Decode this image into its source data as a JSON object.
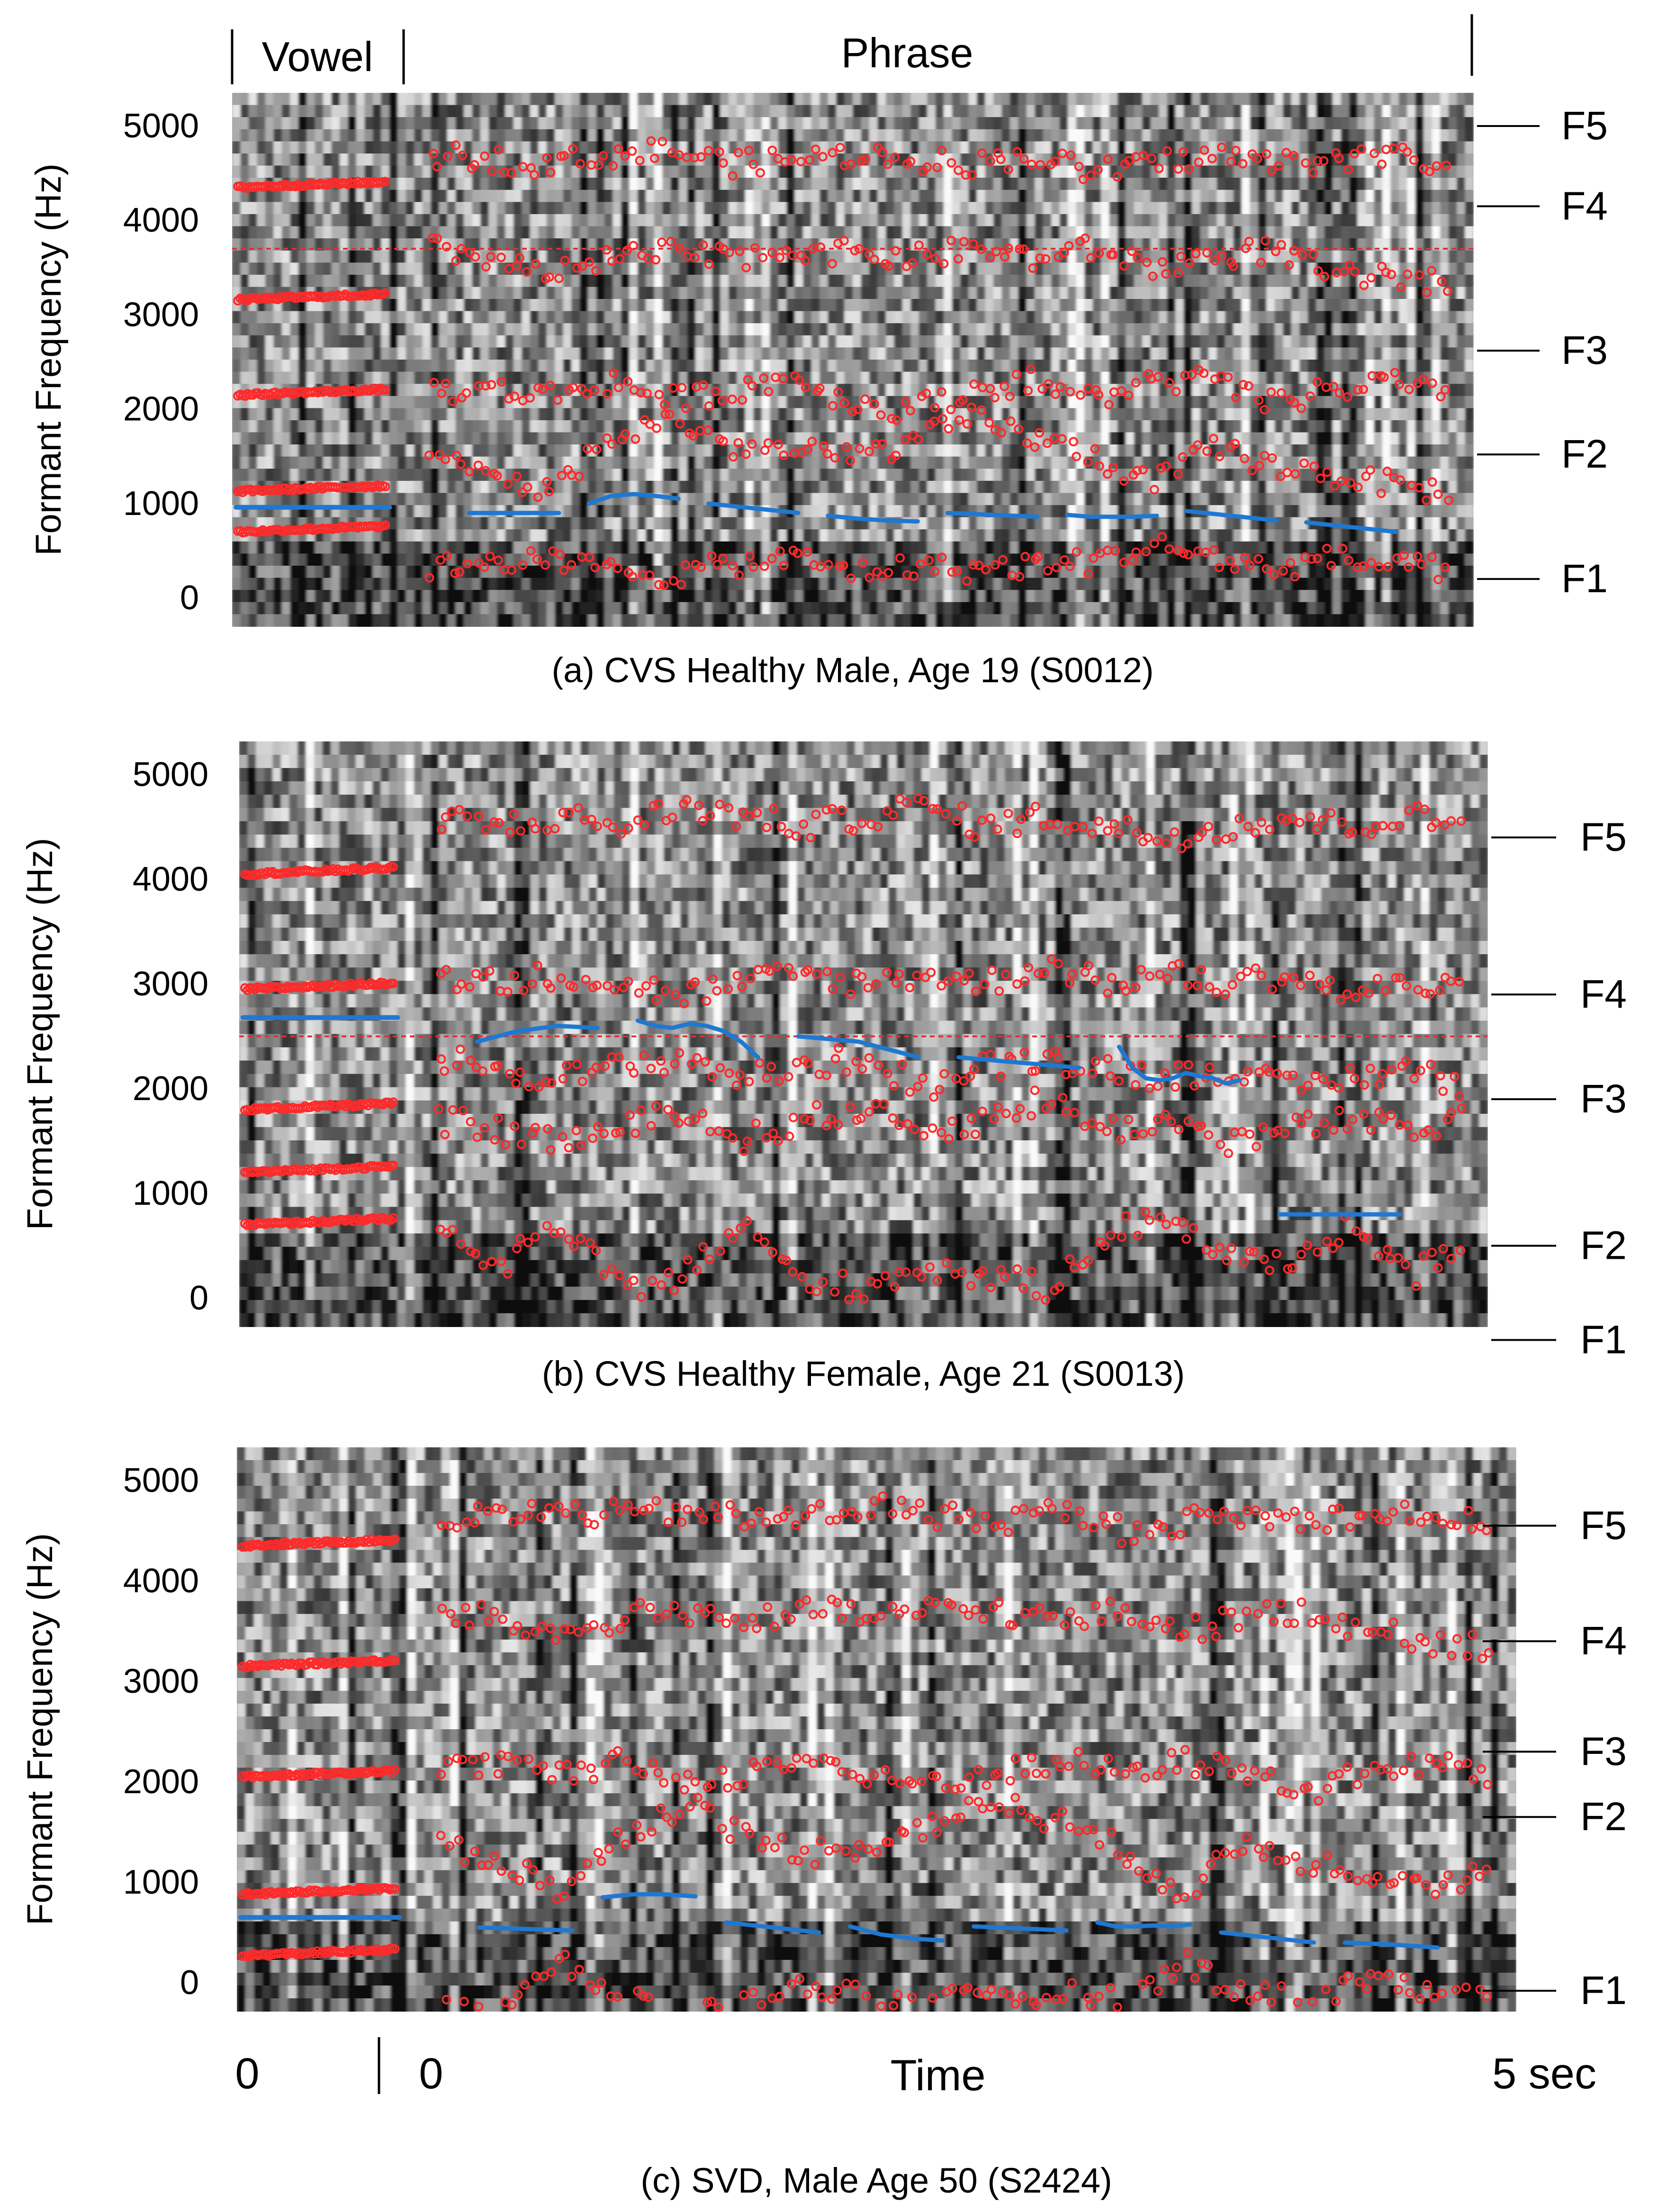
{
  "header": {
    "vowel_label": "Vowel",
    "phrase_label": "Phrase"
  },
  "x_axis": {
    "label": "Time",
    "vowel_start": "0",
    "phrase_start": "0",
    "end_label": "5 sec"
  },
  "colors": {
    "formant_points": "#ff2a2a",
    "pitch_track": "#1f78d1",
    "reference_line": "#e03030"
  },
  "chart_data": [
    {
      "type": "scatter",
      "caption": "(a) CVS Healthy Male, Age 19 (S0012)",
      "ylabel": "Formant Frequency (Hz)",
      "yticks": [
        0,
        1000,
        2000,
        3000,
        4000,
        5000
      ],
      "ylim": [
        0,
        5000
      ],
      "formant_labels": [
        "F5",
        "F4",
        "F3",
        "F2",
        "F1"
      ],
      "formant_label_hz": [
        5000,
        4150,
        2620,
        1520,
        200
      ],
      "reference_line_hz": 3700,
      "vowel_formants_hz": [
        700,
        1130,
        2150,
        3160,
        4350
      ],
      "pitch_vowel_hz": 960,
      "series": [
        {
          "name": "F1",
          "values": [
            300,
            420,
            380,
            300,
            240,
            360,
            420,
            280,
            330,
            300,
            350,
            380,
            560,
            430,
            300,
            420,
            330,
            300
          ]
        },
        {
          "name": "F2",
          "values": [
            1450,
            1300,
            1120,
            1700,
            1900,
            1600,
            1550,
            1500,
            1650,
            1900,
            1700,
            1500,
            1200,
            1600,
            1400,
            1300,
            1200,
            1100
          ]
        },
        {
          "name": "F3",
          "values": [
            2200,
            2200,
            2150,
            2300,
            2100,
            2200,
            2350,
            2050,
            2000,
            2200,
            2300,
            2100,
            2300,
            2300,
            2050,
            2200,
            2300,
            2100
          ]
        },
        {
          "name": "F4",
          "values": [
            3700,
            3600,
            3400,
            3600,
            3650,
            3600,
            3700,
            3650,
            3600,
            3700,
            3600,
            3700,
            3500,
            3600,
            3700,
            3400,
            3400,
            3300
          ]
        },
        {
          "name": "F5",
          "values": [
            4700,
            4650,
            4600,
            4700,
            4750,
            4600,
            4650,
            4700,
            4650,
            4600,
            4700,
            4500,
            4600,
            4700,
            4600,
            4650,
            4700,
            4500
          ]
        }
      ],
      "pitch_segments_hz": [
        [
          900,
          900
        ],
        [
          1000,
          1080,
          1100,
          1080,
          1050
        ],
        [
          1000,
          900
        ],
        [
          870,
          840,
          820,
          810
        ],
        [
          900,
          860
        ],
        [
          880,
          860,
          860,
          860,
          870
        ],
        [
          920,
          820
        ],
        [
          800,
          750,
          700
        ]
      ]
    },
    {
      "type": "scatter",
      "caption": "(b) CVS Healthy Female, Age 21 (S0013)",
      "ylabel": "Formant Frequency (Hz)",
      "yticks": [
        0,
        1000,
        2000,
        3000,
        4000,
        5000
      ],
      "ylim": [
        0,
        5000
      ],
      "formant_labels": [
        "F5",
        "F4",
        "F3",
        "F2",
        "F1"
      ],
      "formant_label_hz": [
        4400,
        2900,
        1900,
        500,
        -400
      ],
      "reference_line_hz": 2500,
      "vowel_formants_hz": [
        700,
        1200,
        1800,
        2950,
        4050
      ],
      "pitch_vowel_hz": 2680,
      "series": [
        {
          "name": "F1",
          "values": [
            600,
            300,
            700,
            100,
            200,
            700,
            150,
            100,
            300,
            200,
            100,
            600,
            800,
            400,
            300,
            700,
            200,
            500
          ]
        },
        {
          "name": "F2",
          "values": [
            1700,
            1600,
            1500,
            1600,
            1800,
            1500,
            1700,
            1800,
            1600,
            1700,
            1900,
            1600,
            1700,
            1500,
            1600,
            1700,
            1600,
            1700
          ]
        },
        {
          "name": "F3",
          "values": [
            2300,
            2200,
            2100,
            2200,
            2300,
            2100,
            2200,
            2300,
            2000,
            2200,
            2300,
            2200,
            2100,
            2200,
            2000,
            2100,
            2200,
            2000
          ]
        },
        {
          "name": "F4",
          "values": [
            3100,
            3000,
            3100,
            3000,
            2900,
            3000,
            3100,
            3000,
            3100,
            3000,
            3200,
            3000,
            3100,
            3000,
            3100,
            2900,
            3000,
            2900
          ]
        },
        {
          "name": "F5",
          "values": [
            4600,
            4500,
            4600,
            4500,
            4700,
            4600,
            4500,
            4600,
            4700,
            4500,
            4600,
            4500,
            4400,
            4500,
            4600,
            4500,
            4600,
            4500
          ]
        }
      ],
      "pitch_segments_hz": [
        [
          2450,
          2550,
          2600,
          2580
        ],
        [
          2650,
          2600,
          2580,
          2620,
          2600,
          2550,
          2450,
          2300
        ],
        [
          2500,
          2450,
          2300
        ],
        [
          2300,
          2250,
          2200
        ],
        [
          2400,
          2200,
          2100,
          2080,
          2100,
          2150,
          2120,
          2100,
          2050,
          2080
        ],
        [
          800,
          800
        ]
      ]
    },
    {
      "type": "scatter",
      "caption": "(c) SVD, Male Age 50 (S2424)",
      "ylabel": "Formant Frequency (Hz)",
      "yticks": [
        0,
        1000,
        2000,
        3000,
        4000,
        5000
      ],
      "ylim": [
        0,
        5000
      ],
      "formant_labels": [
        "F5",
        "F4",
        "F3",
        "F2",
        "F1"
      ],
      "formant_label_hz": [
        4550,
        3400,
        2300,
        1650,
        -80
      ],
      "reference_line_hz": null,
      "vowel_formants_hz": [
        270,
        880,
        2050,
        3150,
        4350
      ],
      "pitch_vowel_hz": 650,
      "series": [
        {
          "name": "F1",
          "values": [
            -200,
            -250,
            200,
            -200,
            -300,
            -200,
            0,
            -200,
            -150,
            -200,
            -100,
            -200,
            200,
            -100,
            -200,
            100,
            -150,
            -200
          ]
        },
        {
          "name": "F2",
          "values": [
            1400,
            1200,
            900,
            1500,
            1800,
            1400,
            1300,
            1400,
            1600,
            1800,
            1600,
            1300,
            900,
            1400,
            1200,
            1100,
            1000,
            1100
          ]
        },
        {
          "name": "F3",
          "values": [
            2100,
            2200,
            2050,
            2200,
            2000,
            2100,
            2250,
            2000,
            2000,
            2100,
            2200,
            2100,
            2200,
            2100,
            1900,
            2100,
            2200,
            2000
          ]
        },
        {
          "name": "F4",
          "values": [
            3700,
            3600,
            3450,
            3650,
            3700,
            3600,
            3700,
            3650,
            3700,
            3700,
            3600,
            3700,
            3500,
            3650,
            3700,
            3500,
            3400,
            3300
          ]
        },
        {
          "name": "F5",
          "values": [
            4600,
            4650,
            4700,
            4650,
            4700,
            4600,
            4650,
            4750,
            4650,
            4600,
            4700,
            4500,
            4600,
            4650,
            4600,
            4700,
            4650,
            4500
          ]
        }
      ],
      "pitch_segments_hz": [
        [
          550,
          520
        ],
        [
          850,
          880,
          880,
          860
        ],
        [
          600,
          500
        ],
        [
          560,
          480,
          440,
          420
        ],
        [
          560,
          520
        ],
        [
          600,
          560,
          560,
          570,
          560,
          580
        ],
        [
          500,
          400
        ],
        [
          400,
          380,
          350
        ]
      ]
    }
  ]
}
